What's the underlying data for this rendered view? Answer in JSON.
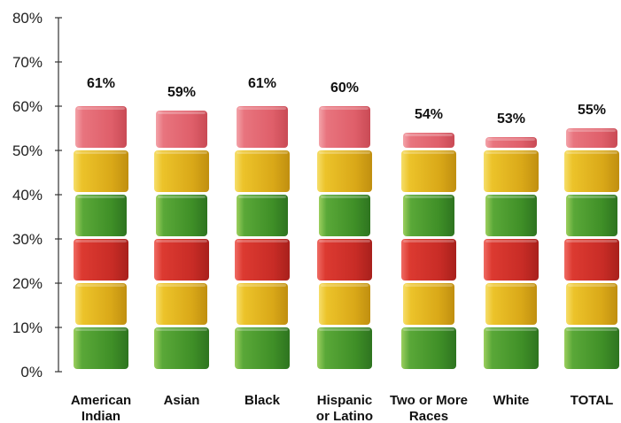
{
  "chart_data": {
    "type": "bar",
    "title": "",
    "xlabel": "",
    "ylabel": "",
    "ylim": [
      0,
      80
    ],
    "yticks": [
      "0%",
      "10%",
      "20%",
      "30%",
      "40%",
      "50%",
      "60%",
      "70%",
      "80%"
    ],
    "categories": [
      [
        "American",
        "Indian"
      ],
      [
        "Asian"
      ],
      [
        "Black"
      ],
      [
        "Hispanic",
        "or Latino"
      ],
      [
        "Two or More",
        "Races"
      ],
      [
        "White"
      ],
      [
        "TOTAL"
      ]
    ],
    "values": [
      61,
      59,
      61,
      60,
      54,
      53,
      55
    ],
    "value_labels": [
      "61%",
      "59%",
      "61%",
      "60%",
      "54%",
      "53%",
      "55%"
    ],
    "grid": false,
    "legend": "none",
    "block_colors": [
      "#4a9a2c",
      "#e6b620",
      "#d6342c",
      "#4a9a2c",
      "#e6b620",
      "#e4636f"
    ]
  }
}
